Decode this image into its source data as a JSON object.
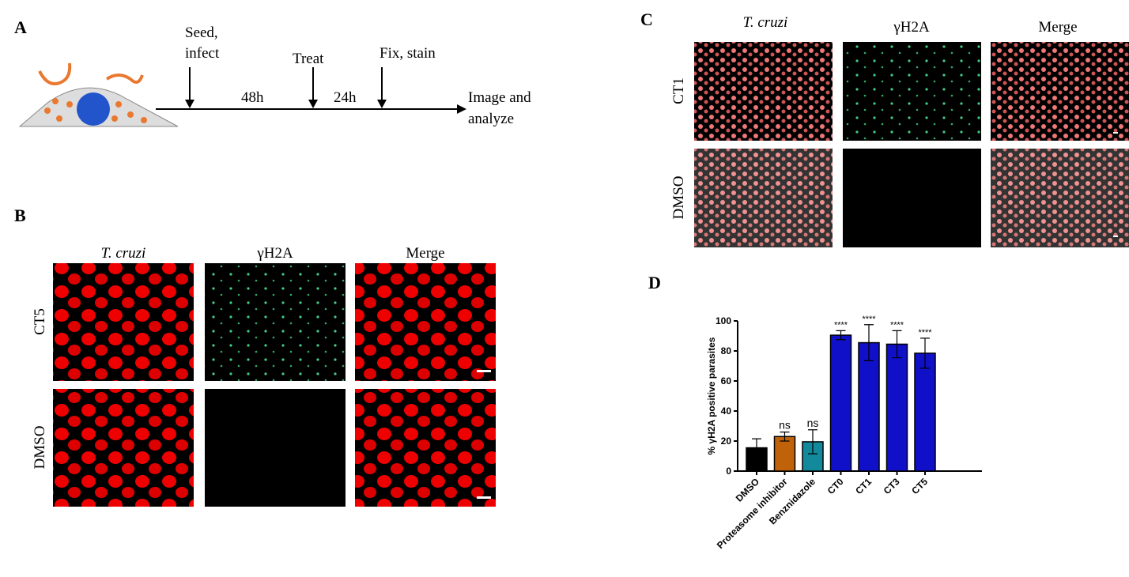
{
  "panel_a": {
    "label": "A",
    "seed": [
      "Seed,",
      "infect"
    ],
    "interval_1": "48h",
    "treat": "Treat",
    "interval_2": "24h",
    "fix": "Fix, stain",
    "image": [
      "Image and",
      "analyze"
    ]
  },
  "panel_b": {
    "label": "B",
    "columns": [
      "T. cruzi",
      "γH2A",
      "Merge"
    ],
    "rows": [
      "CT5",
      "DMSO"
    ]
  },
  "panel_c": {
    "label": "C",
    "columns": [
      "T. cruzi",
      "γH2A",
      "Merge"
    ],
    "rows": [
      "CT1",
      "DMSO"
    ]
  },
  "chart_data": {
    "type": "bar",
    "label": "D",
    "y_label": "% γH2A positive parasites",
    "categories": [
      "DMSO",
      "Proteasome inhibitor",
      "Benznidazole",
      "CT0",
      "CT1",
      "CT3",
      "CT5"
    ],
    "values": [
      15.5,
      23,
      19.5,
      90.5,
      85.5,
      84.5,
      78.5
    ],
    "errors": [
      6,
      3,
      8,
      3,
      12,
      9,
      10
    ],
    "annotations": [
      null,
      "ns",
      "ns",
      "****",
      "****",
      "****",
      "****"
    ],
    "colors": [
      "#000000",
      "#c0620a",
      "#138a9c",
      "#1010c8",
      "#1010c8",
      "#1010c8",
      "#1010c8"
    ],
    "ylim": [
      0,
      100
    ],
    "yticks": [
      0,
      20,
      40,
      60,
      80,
      100
    ]
  }
}
